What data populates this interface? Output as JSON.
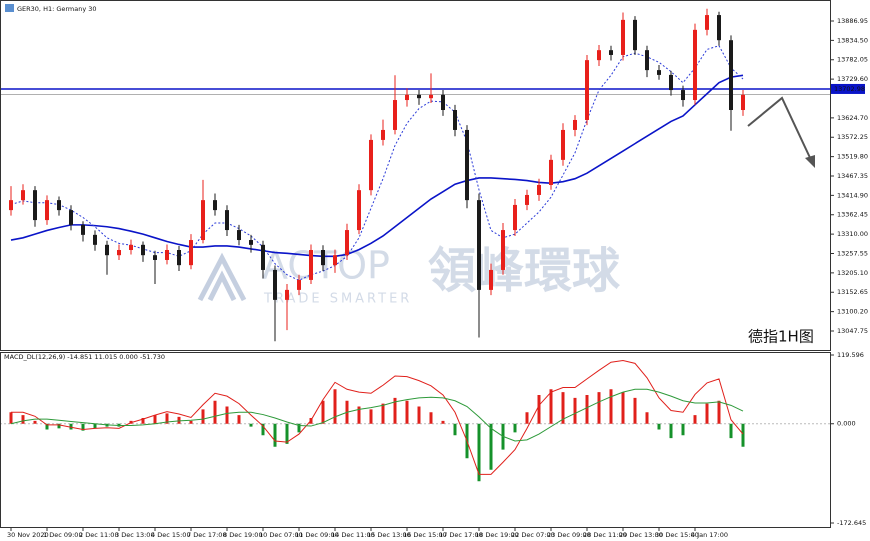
{
  "chart_data": [
    {
      "type": "candlestick",
      "title": "GER30, H1: Germany 30",
      "annotation": "德指1H图",
      "annotation_color": "#e8151b",
      "watermark": {
        "logo": "ACTOP",
        "name": "領峰環球",
        "tagline": "TRADE SMARTER"
      },
      "up_color": "#e8201b",
      "down_color": "#1a1a1a",
      "ylim": [
        12996.3,
        13943.8
      ],
      "yticks": [
        13886.95,
        {
          "value": 13834.5,
          "label": "13834.50"
        },
        13782.05,
        {
          "value": 13729.6,
          "label": "13729.60"
        },
        {
          "value": 13624.7,
          "label": "13624.70"
        },
        13572.25,
        {
          "value": 13519.8,
          "label": "13519.80"
        },
        13467.35,
        {
          "value": 13414.9,
          "label": "13414.90"
        },
        13362.45,
        {
          "value": 13310,
          "label": "13310.00"
        },
        13257.55,
        {
          "value": 13205.1,
          "label": "13205.10"
        },
        13152.65,
        {
          "value": 13100.2,
          "label": "13100.20"
        },
        13047.75
      ],
      "xticks": [
        {
          "value": 0,
          "label": "30 Nov 2020"
        },
        {
          "value": 3,
          "label": "1 Dec 09:00"
        },
        {
          "value": 6,
          "label": "2 Dec 11:00"
        },
        {
          "value": 9,
          "label": "3 Dec 13:00"
        },
        {
          "value": 12,
          "label": "4 Dec 15:00"
        },
        {
          "value": 15,
          "label": "7 Dec 17:00"
        },
        {
          "value": 18,
          "label": "8 Dec 19:00"
        },
        {
          "value": 21,
          "label": "10 Dec 07:00"
        },
        {
          "value": 24,
          "label": "11 Dec 09:00"
        },
        {
          "value": 27,
          "label": "14 Dec 11:00"
        },
        {
          "value": 30,
          "label": "15 Dec 13:00"
        },
        {
          "value": 33,
          "label": "16 Dec 15:00"
        },
        {
          "value": 36,
          "label": "17 Dec 17:00"
        },
        {
          "value": 39,
          "label": "18 Dec 19:00"
        },
        {
          "value": 42,
          "label": "22 Dec 07:00"
        },
        {
          "value": 45,
          "label": "23 Dec 09:00"
        },
        {
          "value": 48,
          "label": "28 Dec 11:00"
        },
        {
          "value": 51,
          "label": "29 Dec 13:00"
        },
        {
          "value": 54,
          "label": "30 Dec 15:00"
        },
        {
          "value": 57,
          "label": "4 Jan 17:00"
        }
      ],
      "hlines": [
        {
          "value": 13702.98,
          "label": "13702.98",
          "color": "#0a14c8"
        },
        {
          "value": 13688,
          "color": "#b0b0b0"
        }
      ],
      "ohlc": [
        [
          13375,
          13440,
          13360,
          13402
        ],
        [
          13402,
          13445,
          13390,
          13429
        ],
        [
          13429,
          13440,
          13330,
          13348
        ],
        [
          13348,
          13415,
          13335,
          13402
        ],
        [
          13402,
          13412,
          13360,
          13375
        ],
        [
          13375,
          13388,
          13320,
          13335
        ],
        [
          13335,
          13345,
          13290,
          13308
        ],
        [
          13308,
          13320,
          13265,
          13281
        ],
        [
          13281,
          13292,
          13200,
          13253
        ],
        [
          13253,
          13282,
          13240,
          13267
        ],
        [
          13267,
          13295,
          13255,
          13281
        ],
        [
          13281,
          13290,
          13235,
          13253
        ],
        [
          13253,
          13265,
          13175,
          13240
        ],
        [
          13240,
          13282,
          13228,
          13267
        ],
        [
          13267,
          13278,
          13210,
          13226
        ],
        [
          13226,
          13310,
          13215,
          13294
        ],
        [
          13294,
          13457,
          13285,
          13402
        ],
        [
          13402,
          13420,
          13360,
          13375
        ],
        [
          13375,
          13388,
          13305,
          13321
        ],
        [
          13321,
          13335,
          13280,
          13294
        ],
        [
          13294,
          13308,
          13260,
          13281
        ],
        [
          13281,
          13292,
          13190,
          13213
        ],
        [
          13213,
          13225,
          13020,
          13132
        ],
        [
          13132,
          13175,
          13050,
          13159
        ],
        [
          13159,
          13200,
          13145,
          13186
        ],
        [
          13186,
          13282,
          13175,
          13267
        ],
        [
          13267,
          13280,
          13210,
          13226
        ],
        [
          13226,
          13268,
          13205,
          13253
        ],
        [
          13253,
          13338,
          13240,
          13321
        ],
        [
          13321,
          13445,
          13310,
          13429
        ],
        [
          13429,
          13580,
          13415,
          13565
        ],
        [
          13565,
          13620,
          13550,
          13592
        ],
        [
          13592,
          13740,
          13580,
          13673
        ],
        [
          13673,
          13705,
          13655,
          13687
        ],
        [
          13687,
          13700,
          13660,
          13678
        ],
        [
          13678,
          13745,
          13665,
          13687
        ],
        [
          13687,
          13700,
          13630,
          13646
        ],
        [
          13646,
          13660,
          13575,
          13592
        ],
        [
          13592,
          13605,
          13380,
          13402
        ],
        [
          13402,
          13420,
          13030,
          13159
        ],
        [
          13159,
          13230,
          13145,
          13213
        ],
        [
          13213,
          13340,
          13200,
          13321
        ],
        [
          13321,
          13405,
          13305,
          13389
        ],
        [
          13389,
          13430,
          13375,
          13416
        ],
        [
          13416,
          13460,
          13400,
          13443
        ],
        [
          13443,
          13525,
          13430,
          13511
        ],
        [
          13511,
          13610,
          13495,
          13592
        ],
        [
          13592,
          13632,
          13575,
          13619
        ],
        [
          13619,
          13795,
          13605,
          13781
        ],
        [
          13781,
          13822,
          13765,
          13808
        ],
        [
          13808,
          13820,
          13780,
          13795
        ],
        [
          13795,
          13910,
          13780,
          13890
        ],
        [
          13890,
          13900,
          13795,
          13808
        ],
        [
          13808,
          13820,
          13735,
          13754
        ],
        [
          13754,
          13768,
          13728,
          13741
        ],
        [
          13741,
          13752,
          13685,
          13700
        ],
        [
          13700,
          13712,
          13655,
          13673
        ],
        [
          13673,
          13880,
          13660,
          13863
        ],
        [
          13863,
          13920,
          13848,
          13903
        ],
        [
          13903,
          13912,
          13820,
          13835
        ],
        [
          13835,
          13848,
          13590,
          13646
        ],
        [
          13646,
          13700,
          13630,
          13687
        ]
      ],
      "lines": [
        {
          "color": "#0a14c8",
          "dash": false,
          "values": [
            13294,
            13300,
            13310,
            13320,
            13328,
            13335,
            13335,
            13333,
            13330,
            13325,
            13318,
            13310,
            13300,
            13290,
            13282,
            13275,
            13275,
            13278,
            13278,
            13275,
            13270,
            13265,
            13260,
            13258,
            13255,
            13252,
            13250,
            13250,
            13255,
            13268,
            13285,
            13305,
            13330,
            13355,
            13380,
            13405,
            13425,
            13445,
            13455,
            13462,
            13462,
            13460,
            13458,
            13455,
            13450,
            13448,
            13452,
            13460,
            13475,
            13495,
            13515,
            13535,
            13555,
            13575,
            13595,
            13615,
            13630,
            13660,
            13690,
            13720,
            13735,
            13740
          ]
        },
        {
          "color": "#2a3ad8",
          "dash": true,
          "values": [
            13390,
            13400,
            13395,
            13395,
            13390,
            13375,
            13355,
            13330,
            13300,
            13285,
            13280,
            13270,
            13260,
            13260,
            13250,
            13265,
            13310,
            13340,
            13340,
            13325,
            13305,
            13275,
            13230,
            13200,
            13185,
            13200,
            13210,
            13225,
            13250,
            13300,
            13380,
            13460,
            13550,
            13610,
            13650,
            13670,
            13668,
            13640,
            13560,
            13430,
            13320,
            13300,
            13310,
            13340,
            13370,
            13410,
            13470,
            13530,
            13620,
            13700,
            13740,
            13790,
            13800,
            13790,
            13775,
            13750,
            13720,
            13760,
            13810,
            13820,
            13760,
            13730
          ]
        }
      ]
    },
    {
      "type": "macd",
      "title": "MACD_DL(12,26,9) -14.851 11.015 0.000 -51.730",
      "ylim": [
        -179.6,
        124.8
      ],
      "yticks": [
        119.596,
        {
          "value": 0,
          "label": "0.000"
        },
        -172.645
      ],
      "histogram": {
        "up_color": "#e0201b",
        "down_color": "#15912a",
        "values": [
          20,
          15,
          5,
          -10,
          -8,
          -10,
          -12,
          -8,
          -5,
          -5,
          5,
          10,
          15,
          18,
          12,
          5,
          25,
          40,
          30,
          15,
          -5,
          -20,
          -40,
          -35,
          -15,
          10,
          40,
          60,
          40,
          30,
          25,
          35,
          45,
          40,
          30,
          20,
          5,
          -20,
          -60,
          -100,
          -80,
          -45,
          -15,
          20,
          50,
          60,
          55,
          45,
          50,
          55,
          60,
          55,
          45,
          20,
          -10,
          -25,
          -20,
          15,
          35,
          40,
          -25,
          -40
        ]
      },
      "lines": [
        {
          "color": "#e0201b",
          "values": [
            20,
            20,
            13,
            -2,
            -2,
            -6,
            -10,
            -8,
            -7,
            -8,
            2,
            8,
            15,
            21,
            17,
            11,
            33,
            53,
            48,
            35,
            15,
            -4,
            -30,
            -32,
            -18,
            6,
            42,
            72,
            60,
            55,
            53,
            67,
            83,
            82,
            75,
            66,
            50,
            20,
            -30,
            -88,
            -88,
            -67,
            -45,
            -8,
            32,
            55,
            63,
            63,
            78,
            93,
            107,
            110,
            105,
            80,
            45,
            23,
            20,
            51,
            71,
            78,
            7,
            -18
          ]
        },
        {
          "color": "#2e9a3a",
          "values": [
            0,
            5,
            8,
            8,
            6,
            4,
            2,
            0,
            -2,
            -3,
            -3,
            -2,
            0,
            3,
            5,
            6,
            8,
            13,
            18,
            20,
            20,
            16,
            10,
            3,
            -3,
            -4,
            2,
            12,
            20,
            25,
            28,
            32,
            38,
            42,
            45,
            46,
            45,
            40,
            30,
            12,
            -8,
            -22,
            -30,
            -28,
            -18,
            -5,
            8,
            18,
            28,
            38,
            47,
            55,
            60,
            60,
            55,
            48,
            40,
            36,
            36,
            38,
            32,
            22
          ]
        }
      ]
    }
  ]
}
